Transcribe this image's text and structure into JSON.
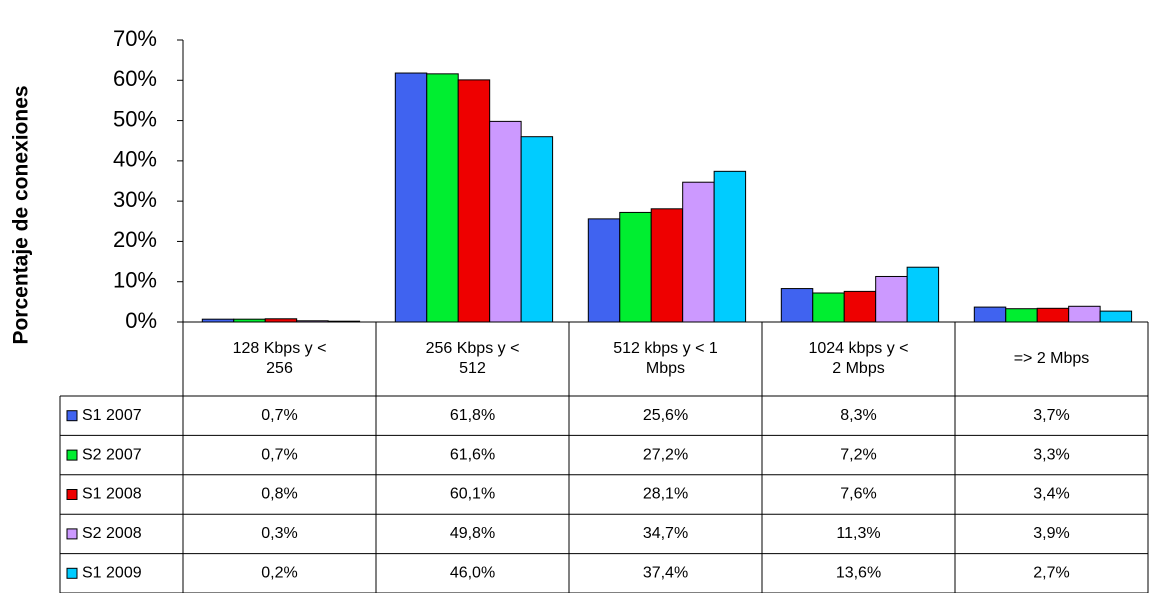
{
  "chart_data": {
    "type": "bar",
    "y_label": "Porcentaje de conexiones",
    "categories": [
      "128 Kbps y <\n256",
      "256 Kbps y <\n512",
      "512 kbps y < 1\nMbps",
      "1024 kbps y <\n2 Mbps",
      "=> 2 Mbps"
    ],
    "series": [
      {
        "name": "S1 2007",
        "color": "#4063f0",
        "values": [
          0.7,
          61.8,
          25.6,
          8.3,
          3.7
        ],
        "value_labels": [
          "0,7%",
          "61,8%",
          "25,6%",
          "8,3%",
          "3,7%"
        ]
      },
      {
        "name": "S2 2007",
        "color": "#00ee30",
        "values": [
          0.7,
          61.6,
          27.2,
          7.2,
          3.3
        ],
        "value_labels": [
          "0,7%",
          "61,6%",
          "27,2%",
          "7,2%",
          "3,3%"
        ]
      },
      {
        "name": "S1 2008",
        "color": "#ee0000",
        "values": [
          0.8,
          60.1,
          28.1,
          7.6,
          3.4
        ],
        "value_labels": [
          "0,8%",
          "60,1%",
          "28,1%",
          "7,6%",
          "3,4%"
        ]
      },
      {
        "name": "S2 2008",
        "color": "#cc99ff",
        "values": [
          0.3,
          49.8,
          34.7,
          11.3,
          3.9
        ],
        "value_labels": [
          "0,3%",
          "49,8%",
          "34,7%",
          "11,3%",
          "3,9%"
        ]
      },
      {
        "name": "S1 2009",
        "color": "#00ccff",
        "values": [
          0.2,
          46.0,
          37.4,
          13.6,
          2.7
        ],
        "value_labels": [
          "0,2%",
          "46,0%",
          "37,4%",
          "13,6%",
          "2,7%"
        ]
      }
    ],
    "ylim": [
      0,
      70
    ],
    "yticks": [
      {
        "value": 0,
        "label": "0%"
      },
      {
        "value": 10,
        "label": "10%"
      },
      {
        "value": 20,
        "label": "20%"
      },
      {
        "value": 30,
        "label": "30%"
      },
      {
        "value": 40,
        "label": "40%"
      },
      {
        "value": 50,
        "label": "50%"
      },
      {
        "value": 60,
        "label": "60%"
      },
      {
        "value": 70,
        "label": "70%"
      }
    ]
  }
}
